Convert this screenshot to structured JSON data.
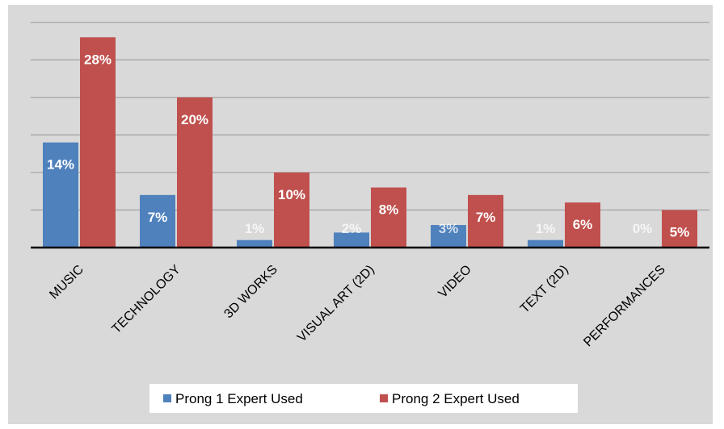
{
  "chart_data": {
    "type": "bar",
    "title": "",
    "xlabel": "",
    "ylabel": "",
    "ylim": [
      0,
      0.32
    ],
    "grid": true,
    "legend_position": "bottom",
    "categories": [
      "MUSIC",
      "TECHNOLOGY",
      "3D WORKS",
      "VISUAL ART (2D)",
      "VIDEO",
      "TEXT (2D)",
      "PERFORMANCES"
    ],
    "series": [
      {
        "name": "Prong 1 Expert Used",
        "color": "#4f81bd",
        "values": [
          0.14,
          0.07,
          0.01,
          0.02,
          0.03,
          0.01,
          0.0
        ],
        "labels": [
          "14%",
          "7%",
          "1%",
          "2%",
          "3%",
          "1%",
          "0%"
        ]
      },
      {
        "name": "Prong 2 Expert Used",
        "color": "#c0504d",
        "values": [
          0.28,
          0.2,
          0.1,
          0.08,
          0.07,
          0.06,
          0.05
        ],
        "labels": [
          "28%",
          "20%",
          "10%",
          "8%",
          "7%",
          "6%",
          "5%"
        ]
      }
    ]
  }
}
